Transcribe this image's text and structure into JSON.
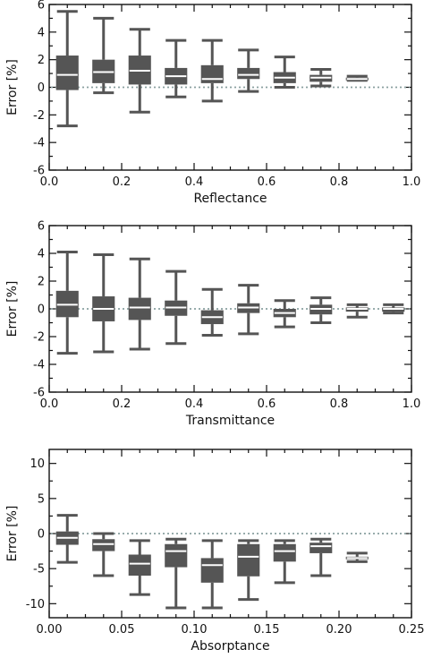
{
  "chart_data": [
    {
      "type": "box",
      "xlabel": "Reflectance",
      "ylabel": "Error [%]",
      "xlim": [
        0.0,
        1.0
      ],
      "ylim": [
        -6,
        6
      ],
      "xticks": [
        "0.0",
        "0.2",
        "0.4",
        "0.6",
        "0.8",
        "1.0"
      ],
      "yticks": [
        "-6",
        "-4",
        "-2",
        "0",
        "2",
        "4",
        "6"
      ],
      "zero_line": true,
      "boxes": [
        {
          "x": 0.05,
          "min": -2.8,
          "q1": -0.2,
          "median": 0.9,
          "q3": 2.3,
          "max": 5.5
        },
        {
          "x": 0.15,
          "min": -0.4,
          "q1": 0.3,
          "median": 1.1,
          "q3": 2.0,
          "max": 5.0
        },
        {
          "x": 0.25,
          "min": -1.8,
          "q1": 0.2,
          "median": 1.2,
          "q3": 2.3,
          "max": 4.2
        },
        {
          "x": 0.35,
          "min": -0.7,
          "q1": 0.2,
          "median": 0.8,
          "q3": 1.4,
          "max": 3.4
        },
        {
          "x": 0.45,
          "min": -1.0,
          "q1": 0.3,
          "median": 0.6,
          "q3": 1.6,
          "max": 3.4
        },
        {
          "x": 0.55,
          "min": -0.3,
          "q1": 0.6,
          "median": 0.9,
          "q3": 1.4,
          "max": 2.7
        },
        {
          "x": 0.65,
          "min": 0.0,
          "q1": 0.3,
          "median": 0.7,
          "q3": 1.1,
          "max": 2.2
        },
        {
          "x": 0.75,
          "min": 0.1,
          "q1": 0.4,
          "median": 0.7,
          "q3": 0.9,
          "max": 1.3
        },
        {
          "x": 0.85,
          "min": 0.5,
          "q1": 0.5,
          "median": 0.6,
          "q3": 0.7,
          "max": 0.8
        }
      ]
    },
    {
      "type": "box",
      "xlabel": "Transmittance",
      "ylabel": "Error [%]",
      "xlim": [
        0.0,
        1.0
      ],
      "ylim": [
        -6,
        6
      ],
      "xticks": [
        "0.0",
        "0.2",
        "0.4",
        "0.6",
        "0.8",
        "1.0"
      ],
      "yticks": [
        "-6",
        "-4",
        "-2",
        "0",
        "2",
        "4",
        "6"
      ],
      "zero_line": true,
      "boxes": [
        {
          "x": 0.05,
          "min": -3.2,
          "q1": -0.6,
          "median": 0.3,
          "q3": 1.3,
          "max": 4.1
        },
        {
          "x": 0.15,
          "min": -3.1,
          "q1": -0.9,
          "median": 0.0,
          "q3": 0.9,
          "max": 3.9
        },
        {
          "x": 0.25,
          "min": -2.9,
          "q1": -0.8,
          "median": 0.1,
          "q3": 0.8,
          "max": 3.6
        },
        {
          "x": 0.35,
          "min": -2.5,
          "q1": -0.5,
          "median": 0.1,
          "q3": 0.6,
          "max": 2.7
        },
        {
          "x": 0.45,
          "min": -1.9,
          "q1": -1.1,
          "median": -0.6,
          "q3": -0.1,
          "max": 1.4
        },
        {
          "x": 0.55,
          "min": -1.8,
          "q1": -0.3,
          "median": 0.1,
          "q3": 0.4,
          "max": 1.7
        },
        {
          "x": 0.65,
          "min": -1.3,
          "q1": -0.6,
          "median": -0.3,
          "q3": 0.0,
          "max": 0.6
        },
        {
          "x": 0.75,
          "min": -1.0,
          "q1": -0.4,
          "median": 0.0,
          "q3": 0.3,
          "max": 0.8
        },
        {
          "x": 0.85,
          "min": -0.6,
          "q1": -0.2,
          "median": 0.0,
          "q3": 0.1,
          "max": 0.3
        },
        {
          "x": 0.95,
          "min": -0.3,
          "q1": -0.2,
          "median": 0.0,
          "q3": 0.1,
          "max": 0.3
        }
      ]
    },
    {
      "type": "box",
      "xlabel": "Absorptance",
      "ylabel": "Error [%]",
      "xlim": [
        0.0,
        0.25
      ],
      "ylim": [
        -12,
        12
      ],
      "xticks": [
        "0.00",
        "0.05",
        "0.10",
        "0.15",
        "0.20",
        "0.25"
      ],
      "yticks": [
        "-10",
        "-5",
        "0",
        "5",
        "10"
      ],
      "ytick_values": [
        -10,
        -5,
        0,
        5,
        10
      ],
      "zero_line": true,
      "boxes": [
        {
          "x": 0.0125,
          "min": -4.1,
          "q1": -1.6,
          "median": -0.6,
          "q3": 0.3,
          "max": 2.6
        },
        {
          "x": 0.0375,
          "min": -6.0,
          "q1": -2.5,
          "median": -1.5,
          "q3": -0.8,
          "max": 0.0
        },
        {
          "x": 0.0625,
          "min": -8.7,
          "q1": -6.0,
          "median": -4.3,
          "q3": -3.0,
          "max": -1.0
        },
        {
          "x": 0.0875,
          "min": -10.6,
          "q1": -4.8,
          "median": -2.5,
          "q3": -1.5,
          "max": -0.8
        },
        {
          "x": 0.1125,
          "min": -10.6,
          "q1": -7.0,
          "median": -4.5,
          "q3": -3.5,
          "max": -1.0
        },
        {
          "x": 0.1375,
          "min": -9.4,
          "q1": -6.1,
          "median": -3.3,
          "q3": -1.5,
          "max": -1.0
        },
        {
          "x": 0.1625,
          "min": -7.0,
          "q1": -4.0,
          "median": -2.5,
          "q3": -1.5,
          "max": -1.0
        },
        {
          "x": 0.1875,
          "min": -6.0,
          "q1": -2.8,
          "median": -1.8,
          "q3": -1.3,
          "max": -0.8
        },
        {
          "x": 0.2125,
          "min": -4.0,
          "q1": -3.5,
          "median": -3.5,
          "q3": -3.3,
          "max": -2.8
        }
      ]
    }
  ]
}
